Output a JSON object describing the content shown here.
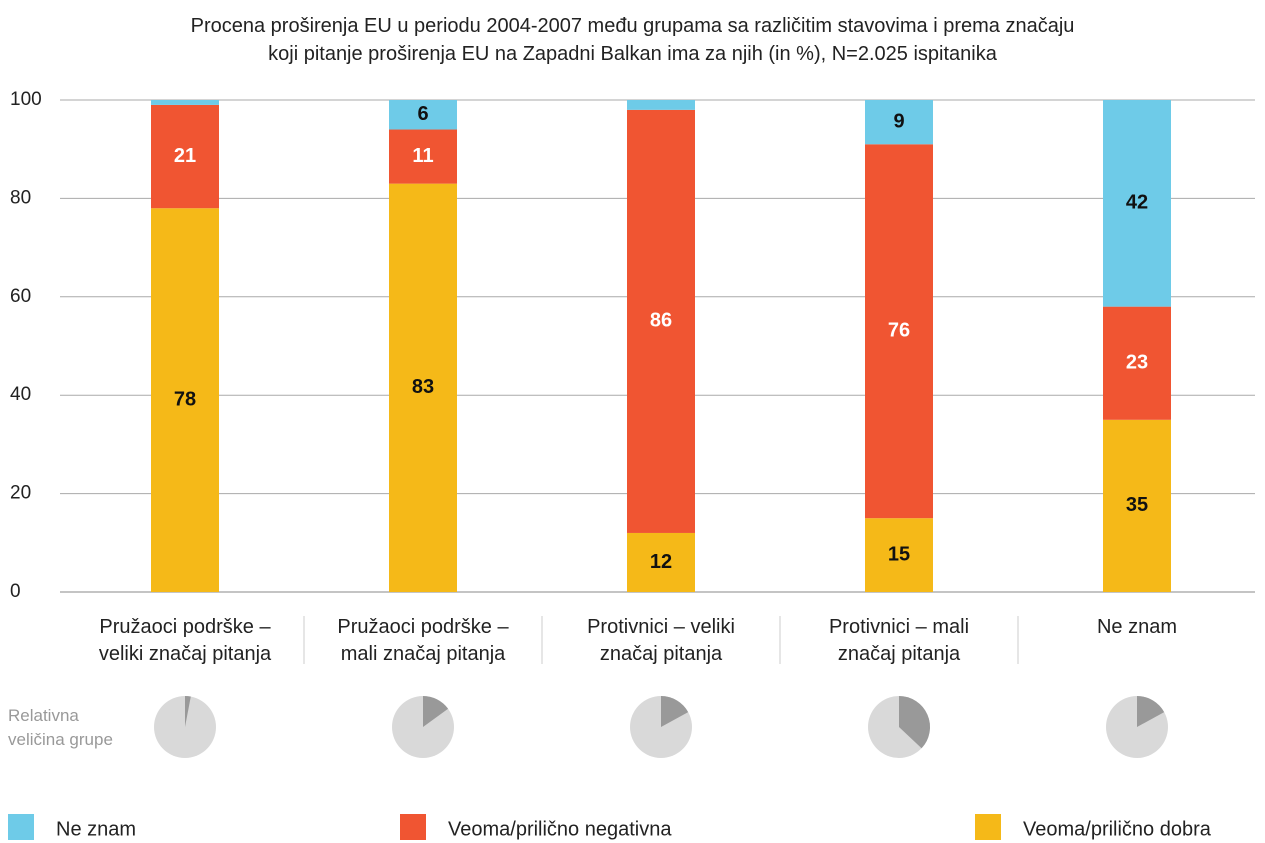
{
  "chart_data": {
    "type": "stacked_bar",
    "title": "Procena proširenja EU u periodu 2004-2007 među grupama sa različitim stavovima i prema značaju\nkoji pitanje proširenja EU na Zapadni Balkan ima za njih (in %), N=2.025 ispitanika",
    "categories": [
      "Pružaoci podrške –\nveliki značaj pitanja",
      "Pružaoci podrške –\nmali značaj pitanja",
      "Protivnici – veliki\nznačaj pitanja",
      "Protivnici – mali\nznačaj pitanja",
      "Ne znam"
    ],
    "series": [
      {
        "name": "Veoma/prilično dobra",
        "color": "#f5b918",
        "values": [
          78,
          83,
          12,
          15,
          35
        ]
      },
      {
        "name": "Veoma/prilično negativna",
        "color": "#f05532",
        "values": [
          21,
          11,
          86,
          76,
          23
        ]
      },
      {
        "name": "Ne znam",
        "color": "#6ecbe8",
        "values": [
          1,
          6,
          2,
          9,
          42
        ]
      }
    ],
    "ylim": [
      0,
      100
    ],
    "yticks": [
      0,
      20,
      40,
      60,
      80,
      100
    ],
    "grid": true,
    "group_size_label": "Relativna\nveličina grupe",
    "group_size": [
      3,
      15,
      17,
      37,
      17
    ]
  }
}
